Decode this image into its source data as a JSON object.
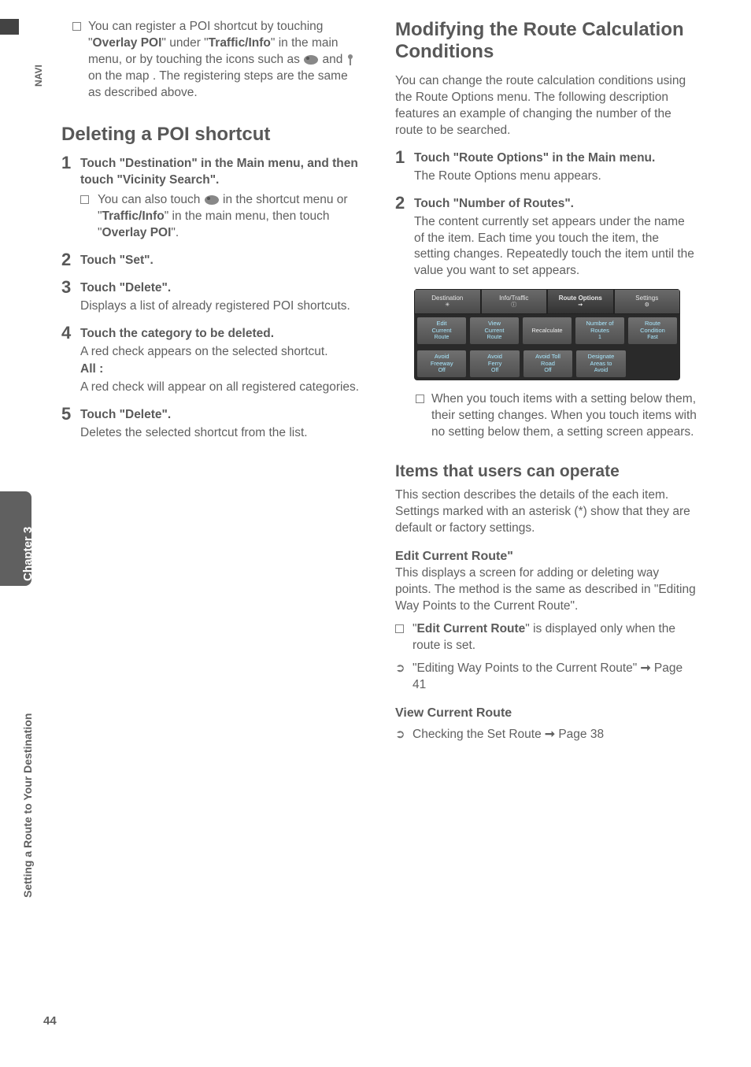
{
  "sidebar": {
    "navi": "NAVI",
    "chapter": "Chapter 3",
    "section": "Setting a Route to Your Destination",
    "page": "44"
  },
  "left": {
    "intro_bullet": {
      "pre": "You can register a POI shortcut by touching \"",
      "b1": "Overlay POI",
      "mid1": "\" under \"",
      "b2": "Traffic/Info",
      "mid2": "\" in the main menu, or by touching the icons such as ",
      "mid3": " and ",
      "mid4": " on the map . The registering steps are the same as described above."
    },
    "h_delete": "Deleting a POI shortcut",
    "s1": {
      "title": "Touch \"Destination\" in the Main menu, and then touch \"Vicinity Search\".",
      "sub_pre": "You can also touch ",
      "sub_mid": " in the shortcut menu or \"",
      "sub_b": "Traffic/Info",
      "sub_mid2": "\" in the main menu, then touch \"",
      "sub_b2": "Overlay POI",
      "sub_end": "\"."
    },
    "s2": {
      "title": "Touch \"Set\"."
    },
    "s3": {
      "title": "Touch \"Delete\".",
      "body": "Displays a list of already registered POI shortcuts."
    },
    "s4": {
      "title": "Touch the category to be deleted.",
      "body1": "A red check appears on the selected shortcut.",
      "all": "All :",
      "body2": "A red check will appear on all registered categories."
    },
    "s5": {
      "title": "Touch \"Delete\".",
      "body": "Deletes the selected shortcut from the list."
    }
  },
  "right": {
    "h_modify": "Modifying the Route Calculation Conditions",
    "intro": "You can change the route calculation conditions using the Route Options menu. The following description features an example of changing the number of the route to be searched.",
    "s1": {
      "title": "Touch \"Route Options\" in the Main menu.",
      "body": "The Route Options menu appears."
    },
    "s2": {
      "title": "Touch \"Number of Routes\".",
      "body": "The content currently set appears under the name of the item. Each time you touch the item, the setting changes. Repeatedly touch the item until the value you want to set appears."
    },
    "shot": {
      "tabs": [
        "Destination",
        "Info/Traffic",
        "Route Options",
        "Settings"
      ],
      "row1": [
        {
          "l1": "Edit",
          "l2": "Current",
          "l3": "Route",
          "hl": true
        },
        {
          "l1": "View",
          "l2": "Current",
          "l3": "Route",
          "hl": true
        },
        {
          "l1": "Recalculate",
          "l2": "",
          "l3": ""
        },
        {
          "l1": "Number of",
          "l2": "Routes",
          "l3": "1",
          "hl": true
        },
        {
          "l1": "Route",
          "l2": "Condition",
          "l3": "Fast",
          "hl": true
        }
      ],
      "row2": [
        {
          "l1": "Avoid",
          "l2": "Freeway",
          "l3": "Off",
          "hl": true
        },
        {
          "l1": "Avoid",
          "l2": "Ferry",
          "l3": "Off",
          "hl": true
        },
        {
          "l1": "Avoid Toll",
          "l2": "Road",
          "l3": "Off",
          "hl": true
        },
        {
          "l1": "Designate",
          "l2": "Areas to",
          "l3": "Avoid",
          "hl": true
        },
        {
          "l1": "",
          "l2": "",
          "l3": "",
          "empty": true
        }
      ]
    },
    "after_shot_bullet": "When you touch items with a setting below them, their setting changes. When you touch items with no setting below them, a setting screen appears.",
    "h_items": "Items that users can operate",
    "items_intro": "This section describes the details of the each item. Settings marked with an asterisk (*) show that they are default or factory settings.",
    "edit_route": {
      "title": "Edit Current Route\"",
      "body": "This displays a screen for adding or deleting way points. The method is the same as described in \"Editing Way Points to the Current Route\".",
      "bullet_pre": "\"",
      "bullet_b": "Edit Current Route",
      "bullet_post": "\" is displayed only when the route is set.",
      "link": "\"Editing Way Points to the Current Route\" ",
      "link_page": " Page 41"
    },
    "view_route": {
      "title": "View Current Route",
      "link": "Checking the Set Route ",
      "link_page": " Page 38"
    }
  }
}
